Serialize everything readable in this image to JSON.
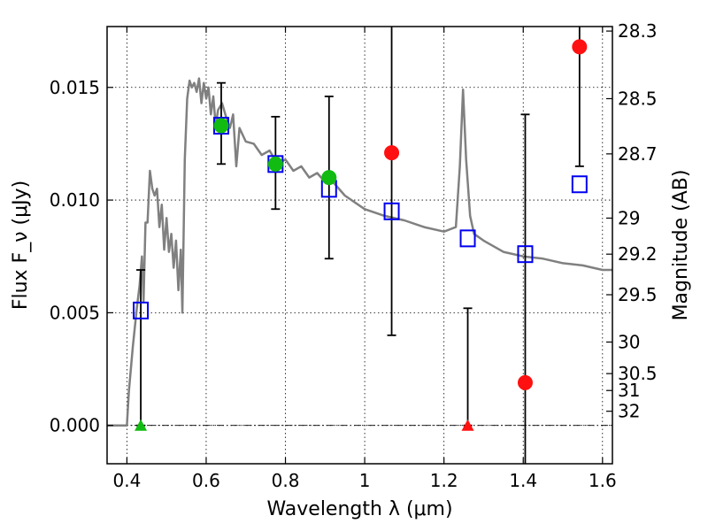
{
  "chart_data": {
    "type": "scatter",
    "xlabel": "Wavelength λ (μm)",
    "ylabel": "Flux F_ν (μJy)",
    "ylabel_right": "Magnitude (AB)",
    "xlim": [
      0.35,
      1.625
    ],
    "ylim": [
      -0.0017,
      0.0177
    ],
    "grid": true,
    "x_ticks": [
      0.4,
      0.6,
      0.8,
      1.0,
      1.2,
      1.4,
      1.6
    ],
    "x_tick_labels": [
      "0.4",
      "0.6",
      "0.8",
      "1",
      "1.2",
      "1.4",
      "1.6"
    ],
    "y_ticks": [
      0.0,
      0.005,
      0.01,
      0.015
    ],
    "y_tick_labels": [
      "0.000",
      "0.005",
      "0.010",
      "0.015"
    ],
    "magnitude_ticks": [
      {
        "label": "28.3",
        "flux": 0.0175
      },
      {
        "label": "28.5",
        "flux": 0.0145
      },
      {
        "label": "28.7",
        "flux": 0.01205
      },
      {
        "label": "29",
        "flux": 0.0092
      },
      {
        "label": "29.2",
        "flux": 0.0076
      },
      {
        "label": "29.5",
        "flux": 0.0058
      },
      {
        "label": "30",
        "flux": 0.0037
      },
      {
        "label": "30.5",
        "flux": 0.0023
      },
      {
        "label": "31",
        "flux": 0.00155
      },
      {
        "label": "32",
        "flux": 0.00063
      }
    ],
    "series": [
      {
        "kind": "sed_model",
        "color": "#808080",
        "x": [
          0.35,
          0.4,
          0.405,
          0.415,
          0.425,
          0.432,
          0.438,
          0.442,
          0.447,
          0.452,
          0.458,
          0.464,
          0.47,
          0.476,
          0.482,
          0.488,
          0.494,
          0.5,
          0.506,
          0.512,
          0.518,
          0.524,
          0.53,
          0.536,
          0.54,
          0.546,
          0.552,
          0.558,
          0.564,
          0.57,
          0.576,
          0.582,
          0.588,
          0.594,
          0.6,
          0.606,
          0.612,
          0.618,
          0.624,
          0.63,
          0.64,
          0.65,
          0.66,
          0.668,
          0.676,
          0.684,
          0.7,
          0.72,
          0.74,
          0.76,
          0.78,
          0.8,
          0.82,
          0.84,
          0.86,
          0.88,
          0.9,
          0.92,
          0.95,
          1.0,
          1.05,
          1.1,
          1.15,
          1.2,
          1.23,
          1.24,
          1.248,
          1.256,
          1.266,
          1.276,
          1.3,
          1.35,
          1.4,
          1.45,
          1.5,
          1.55,
          1.6,
          1.625
        ],
        "y": [
          0.0,
          0.0,
          0.0015,
          0.0035,
          0.0052,
          0.0062,
          0.0075,
          0.0055,
          0.009,
          0.009,
          0.0113,
          0.0105,
          0.0102,
          0.0105,
          0.0088,
          0.0098,
          0.0078,
          0.0092,
          0.0077,
          0.0085,
          0.007,
          0.0082,
          0.006,
          0.0078,
          0.005,
          0.0118,
          0.0145,
          0.0153,
          0.015,
          0.0152,
          0.0148,
          0.0154,
          0.0143,
          0.0152,
          0.0145,
          0.015,
          0.0138,
          0.0146,
          0.0133,
          0.014,
          0.0143,
          0.0137,
          0.0132,
          0.0138,
          0.0115,
          0.0132,
          0.0126,
          0.0125,
          0.012,
          0.0122,
          0.0116,
          0.0118,
          0.0113,
          0.0115,
          0.011,
          0.0112,
          0.0108,
          0.0108,
          0.0102,
          0.0096,
          0.0093,
          0.0091,
          0.0088,
          0.0086,
          0.0088,
          0.0115,
          0.0149,
          0.0118,
          0.0093,
          0.0085,
          0.0082,
          0.0077,
          0.0075,
          0.0074,
          0.0072,
          0.0071,
          0.0069,
          0.0069
        ]
      },
      {
        "kind": "model_band_flux",
        "marker": "open-square",
        "color": "#0000ee",
        "x": [
          0.435,
          0.638,
          0.775,
          0.91,
          1.068,
          1.26,
          1.405,
          1.542
        ],
        "y": [
          0.0051,
          0.0133,
          0.0116,
          0.0105,
          0.0095,
          0.0083,
          0.0076,
          0.0107
        ]
      },
      {
        "kind": "detection",
        "marker": "filled-circle",
        "color": "#11bb11",
        "x": [
          0.638,
          0.775,
          0.91
        ],
        "y": [
          0.0133,
          0.0116,
          0.011
        ]
      },
      {
        "kind": "low_significance",
        "marker": "filled-circle",
        "color": "#ff1111",
        "x": [
          1.068,
          1.405,
          1.542
        ],
        "y": [
          0.0121,
          0.0019,
          0.0168
        ]
      },
      {
        "kind": "non_detection",
        "marker": "triangle",
        "color": "#11bb11",
        "x": [
          0.435
        ],
        "y": [
          0.0
        ]
      },
      {
        "kind": "non_detection",
        "marker": "triangle",
        "color": "#ff1111",
        "x": [
          1.26
        ],
        "y": [
          0.0
        ]
      }
    ],
    "error_bars": [
      {
        "x": 0.435,
        "y_low": 0.0,
        "y_high": 0.0069
      },
      {
        "x": 0.638,
        "y_low": 0.0116,
        "y_high": 0.0152
      },
      {
        "x": 0.775,
        "y_low": 0.0096,
        "y_high": 0.0137
      },
      {
        "x": 0.91,
        "y_low": 0.0074,
        "y_high": 0.0146
      },
      {
        "x": 1.068,
        "y_low": 0.004,
        "y_high": 0.0177
      },
      {
        "x": 1.26,
        "y_low": 0.0,
        "y_high": 0.0052
      },
      {
        "x": 1.405,
        "y_low": -0.0017,
        "y_high": 0.0138
      },
      {
        "x": 1.542,
        "y_low": 0.0115,
        "y_high": 0.0177
      }
    ]
  }
}
